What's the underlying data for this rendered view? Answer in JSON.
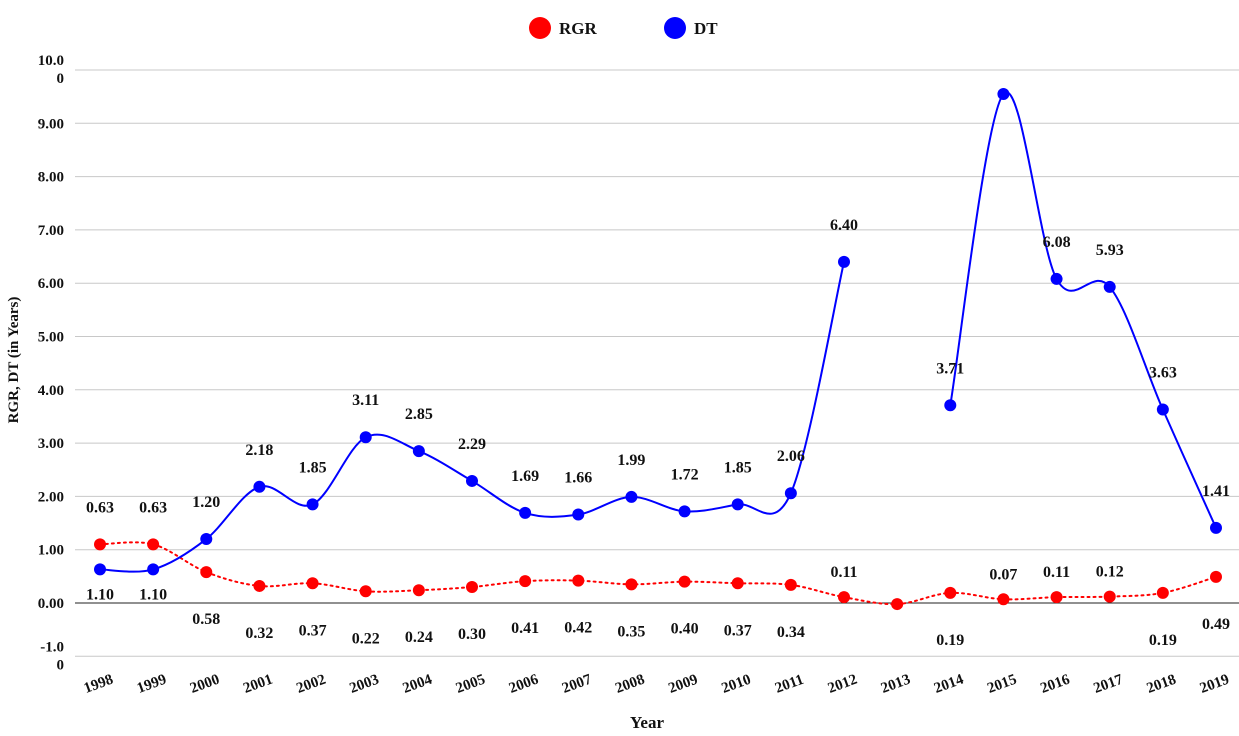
{
  "chart_data": {
    "type": "line",
    "x_label": "Year",
    "y_label": "RGR, DT (in Years)",
    "categories": [
      "1998",
      "1999",
      "2000",
      "2001",
      "2002",
      "2003",
      "2004",
      "2005",
      "2006",
      "2007",
      "2008",
      "2009",
      "2010",
      "2011",
      "2012",
      "2013",
      "2014",
      "2015",
      "2016",
      "2017",
      "2018",
      "2019"
    ],
    "series": [
      {
        "name": "RGR",
        "color": "#ff0000",
        "values": [
          1.1,
          1.1,
          0.58,
          0.32,
          0.37,
          0.22,
          0.24,
          0.3,
          0.41,
          0.42,
          0.35,
          0.4,
          0.37,
          0.34,
          0.11,
          -0.02,
          0.19,
          0.07,
          0.11,
          0.12,
          0.19,
          0.49
        ],
        "value_labels": [
          "1.10",
          "1.10",
          "0.58",
          "0.32",
          "0.37",
          "0.22",
          "0.24",
          "0.30",
          "0.41",
          "0.42",
          "0.35",
          "0.40",
          "0.37",
          "0.34",
          "0.11",
          null,
          "0.19",
          "0.07",
          "0.11",
          "0.12",
          "0.19",
          "0.49"
        ]
      },
      {
        "name": "DT",
        "color": "#0000ff",
        "values": [
          0.63,
          0.63,
          1.2,
          2.18,
          1.85,
          3.11,
          2.85,
          2.29,
          1.69,
          1.66,
          1.99,
          1.72,
          1.85,
          2.06,
          6.4,
          null,
          3.71,
          9.55,
          6.08,
          5.93,
          3.63,
          1.41
        ],
        "value_labels": [
          "0.63",
          "0.63",
          "1.20",
          "2.18",
          "1.85",
          "3.11",
          "2.85",
          "2.29",
          "1.69",
          "1.66",
          "1.99",
          "1.72",
          "1.85",
          "2.06",
          "6.40",
          null,
          "3.71",
          null,
          "6.08",
          "5.93",
          "3.63",
          "1.41"
        ]
      }
    ],
    "ylim": [
      -1,
      10
    ],
    "yticks": [
      {
        "value": -1,
        "label": "-1.00"
      },
      {
        "value": 0,
        "label": "0.00"
      },
      {
        "value": 1,
        "label": "1.00"
      },
      {
        "value": 2,
        "label": "2.00"
      },
      {
        "value": 3,
        "label": "3.00"
      },
      {
        "value": 4,
        "label": "4.00"
      },
      {
        "value": 5,
        "label": "5.00"
      },
      {
        "value": 6,
        "label": "6.00"
      },
      {
        "value": 7,
        "label": "7.00"
      },
      {
        "value": 8,
        "label": "8.00"
      },
      {
        "value": 9,
        "label": "9.00"
      },
      {
        "value": 10,
        "label": "10.00"
      }
    ],
    "grid": true,
    "legend": "top"
  }
}
